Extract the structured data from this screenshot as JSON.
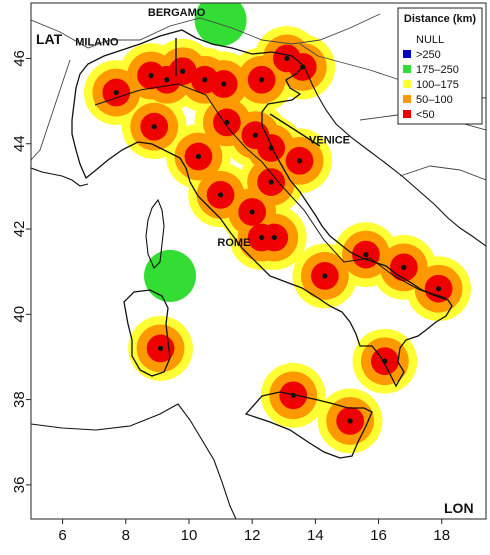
{
  "map": {
    "axes": {
      "xlabel": "LON",
      "ylabel": "LAT",
      "xlim": [
        5,
        19.4
      ],
      "ylim": [
        35.2,
        47.3
      ],
      "xticks": [
        6,
        8,
        10,
        12,
        14,
        16,
        18
      ],
      "yticks": [
        36,
        38,
        40,
        42,
        44,
        46
      ]
    },
    "legend": {
      "title": "Distance (km)",
      "position": "top-right",
      "entries": [
        {
          "label": "NULL",
          "color": "#ffffff"
        },
        {
          "label": ">250",
          "color": "#0000cc"
        },
        {
          "label": "175–250",
          "color": "#33dd33"
        },
        {
          "label": "100–175",
          "color": "#ffff33"
        },
        {
          "label": "50–100",
          "color": "#ff9900"
        },
        {
          "label": "<50",
          "color": "#ee0000"
        }
      ]
    },
    "colors": {
      "band_100_175": "#ffff33",
      "band_50_100": "#ff9900",
      "band_lt50": "#ee0000",
      "band_175_250": "#33dd33",
      "coast": "#111111",
      "border": "#444444",
      "site": "#111111"
    },
    "sites": [
      {
        "lon": 7.7,
        "lat": 45.2
      },
      {
        "lon": 8.8,
        "lat": 45.6
      },
      {
        "lon": 9.3,
        "lat": 45.5
      },
      {
        "lon": 9.8,
        "lat": 45.7
      },
      {
        "lon": 10.5,
        "lat": 45.5
      },
      {
        "lon": 11.1,
        "lat": 45.4
      },
      {
        "lon": 12.3,
        "lat": 45.5
      },
      {
        "lon": 13.1,
        "lat": 46.0
      },
      {
        "lon": 13.6,
        "lat": 45.8
      },
      {
        "lon": 8.9,
        "lat": 44.4
      },
      {
        "lon": 10.3,
        "lat": 43.7
      },
      {
        "lon": 11.2,
        "lat": 44.5
      },
      {
        "lon": 12.1,
        "lat": 44.2
      },
      {
        "lon": 12.6,
        "lat": 43.9
      },
      {
        "lon": 13.5,
        "lat": 43.6
      },
      {
        "lon": 11.0,
        "lat": 42.8
      },
      {
        "lon": 12.6,
        "lat": 43.1
      },
      {
        "lon": 12.0,
        "lat": 42.4
      },
      {
        "lon": 12.3,
        "lat": 41.8
      },
      {
        "lon": 12.7,
        "lat": 41.8
      },
      {
        "lon": 14.3,
        "lat": 40.9
      },
      {
        "lon": 15.6,
        "lat": 41.4
      },
      {
        "lon": 16.8,
        "lat": 41.1
      },
      {
        "lon": 17.9,
        "lat": 40.6
      },
      {
        "lon": 9.1,
        "lat": 39.2
      },
      {
        "lon": 16.2,
        "lat": 38.9
      },
      {
        "lon": 13.3,
        "lat": 38.1
      },
      {
        "lon": 15.1,
        "lat": 37.5
      }
    ],
    "green_sites": [
      {
        "lon": 9.4,
        "lat": 40.9
      },
      {
        "lon": 11.0,
        "lat": 46.9
      }
    ],
    "annotations": [
      {
        "label": "MILANO",
        "lon": 6.4,
        "lat": 46.3
      },
      {
        "label": "BERGAMO",
        "lon": 8.7,
        "lat": 47.0
      },
      {
        "label": "VENICE",
        "lon": 13.8,
        "lat": 44.0
      },
      {
        "label": "ROME",
        "lon": 10.9,
        "lat": 41.6
      }
    ]
  }
}
